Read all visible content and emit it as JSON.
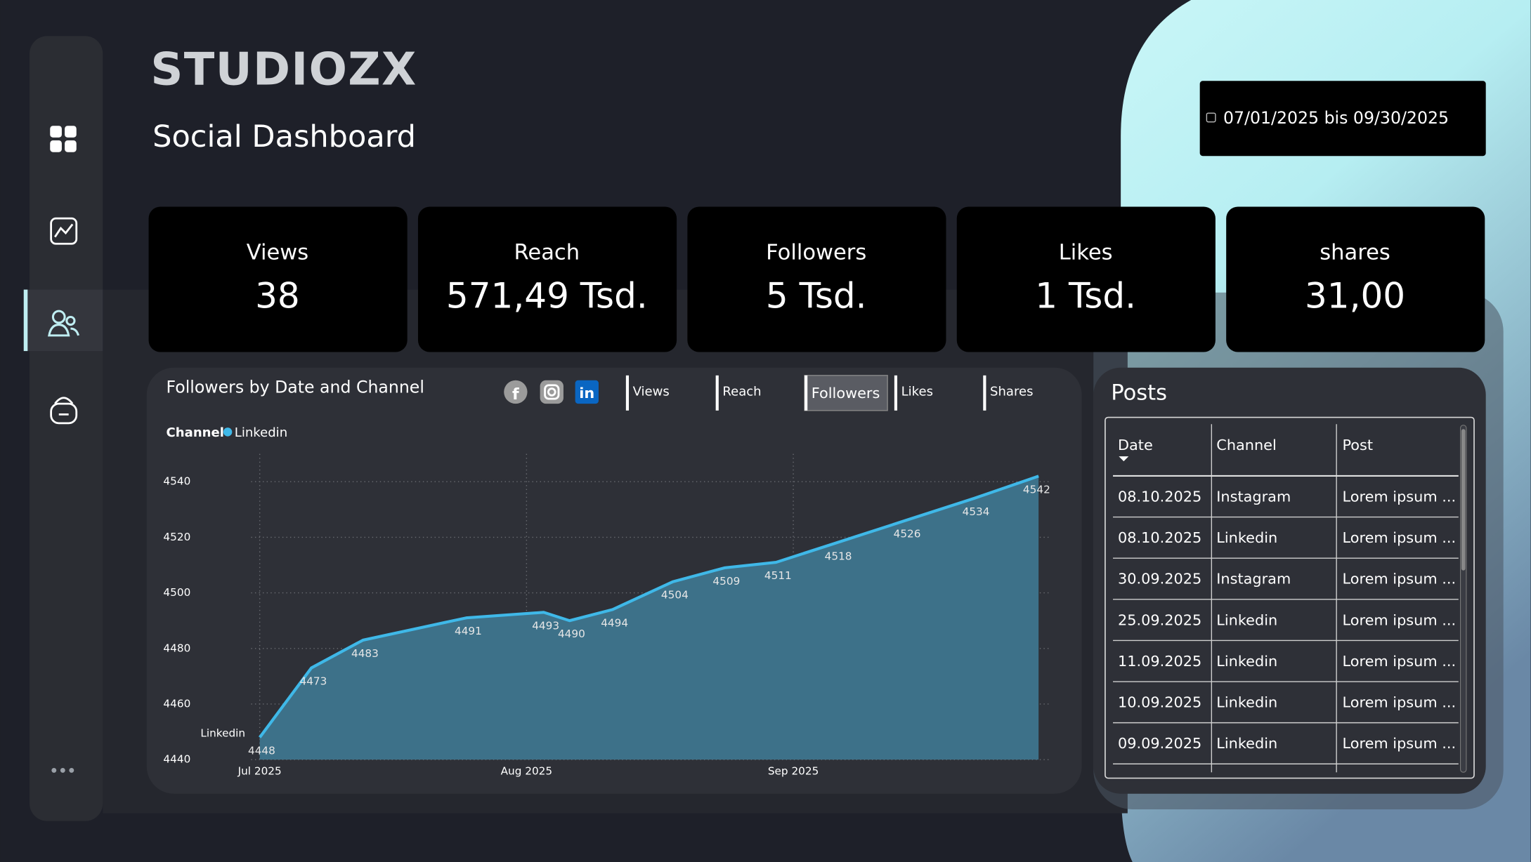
{
  "header": {
    "logo": "STUDIOZX",
    "title": "Social Dashboard",
    "date_range": "07/01/2025 bis 09/30/2025"
  },
  "kpis": [
    {
      "label": "Views",
      "value": "38"
    },
    {
      "label": "Reach",
      "value": "571,49 Tsd."
    },
    {
      "label": "Followers",
      "value": "5 Tsd."
    },
    {
      "label": "Likes",
      "value": "1 Tsd."
    },
    {
      "label": "shares",
      "value": "31,00"
    }
  ],
  "metric_buttons": [
    "Views",
    "Reach",
    "Followers",
    "Likes",
    "Shares"
  ],
  "chart_data": {
    "type": "area",
    "title": "Followers by Date and Channel",
    "legend_title": "Channel",
    "x": [
      0,
      6,
      12,
      24,
      33,
      36,
      41,
      48,
      54,
      60,
      67,
      75,
      83,
      90.5
    ],
    "series": [
      {
        "name": "Linkedin",
        "color": "#3fb8e8",
        "values": [
          4448,
          4473,
          4483,
          4491,
          4493,
          4490,
          4494,
          4504,
          4509,
          4511,
          4518,
          4526,
          4534,
          4542
        ]
      }
    ],
    "xlim": [
      -1,
      92
    ],
    "xticks": [
      {
        "value": 0,
        "label": "Jul 2025"
      },
      {
        "value": 31,
        "label": "Aug 2025"
      },
      {
        "value": 62,
        "label": "Sep 2025"
      }
    ],
    "ylim": [
      4440,
      4550
    ],
    "yticks": [
      4440,
      4460,
      4480,
      4500,
      4520,
      4540
    ],
    "grid": true
  },
  "posts": {
    "title": "Posts",
    "columns": [
      "Date",
      "Channel",
      "Post"
    ],
    "rows": [
      [
        "08.10.2025",
        "Instagram",
        "Lorem ipsum ..."
      ],
      [
        "08.10.2025",
        "Linkedin",
        "Lorem ipsum ..."
      ],
      [
        "30.09.2025",
        "Instagram",
        "Lorem ipsum ..."
      ],
      [
        "25.09.2025",
        "Linkedin",
        "Lorem ipsum ..."
      ],
      [
        "11.09.2025",
        "Linkedin",
        "Lorem ipsum ..."
      ],
      [
        "10.09.2025",
        "Linkedin",
        "Lorem ipsum ..."
      ],
      [
        "09.09.2025",
        "Linkedin",
        "Lorem ipsum ..."
      ]
    ]
  }
}
